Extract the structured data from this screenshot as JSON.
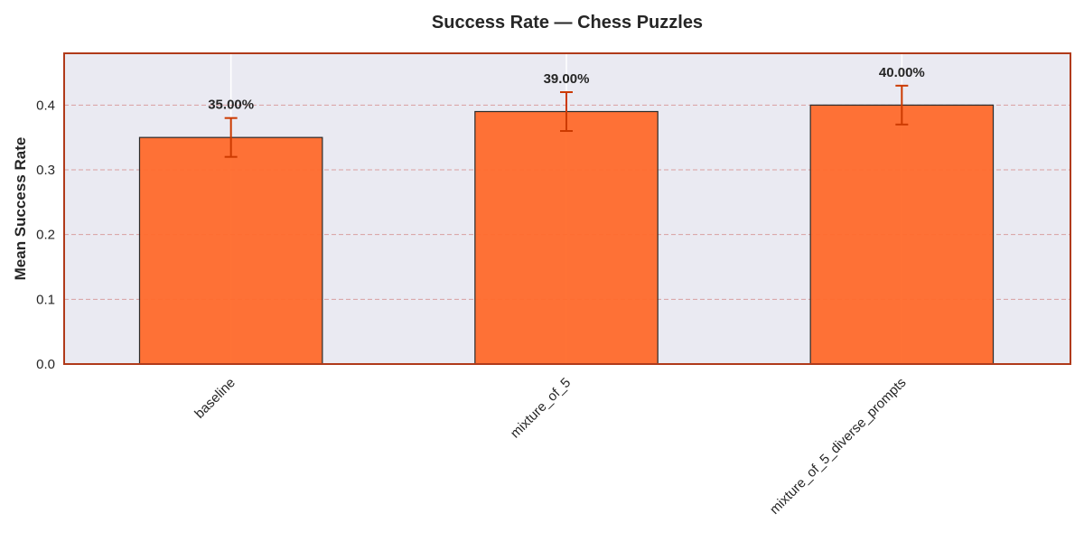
{
  "chart_data": {
    "type": "bar",
    "title": "Success Rate — Chess Puzzles",
    "xlabel": "",
    "ylabel": "Mean Success Rate",
    "categories": [
      "baseline",
      "mixture_of_5",
      "mixture_of_5_diverse_prompts"
    ],
    "values": [
      0.35,
      0.39,
      0.4
    ],
    "error_lower": [
      0.32,
      0.36,
      0.37
    ],
    "error_upper": [
      0.38,
      0.42,
      0.43
    ],
    "data_labels": [
      "35.00%",
      "39.00%",
      "40.00%"
    ],
    "yticks": [
      0.0,
      0.1,
      0.2,
      0.3,
      0.4
    ],
    "ytick_labels": [
      "0.0",
      "0.1",
      "0.2",
      "0.3",
      "0.4"
    ],
    "ylim": [
      0,
      0.48
    ],
    "grid": "y-dashed",
    "legend": "none",
    "colors": {
      "bar": "#ff6a2b",
      "bar_edge": "#2a2a2a",
      "error": "#cc3a00",
      "frame": "#b03a1a",
      "plot_bg": "#eaeaf2",
      "grid": "#d9a0a0"
    }
  }
}
